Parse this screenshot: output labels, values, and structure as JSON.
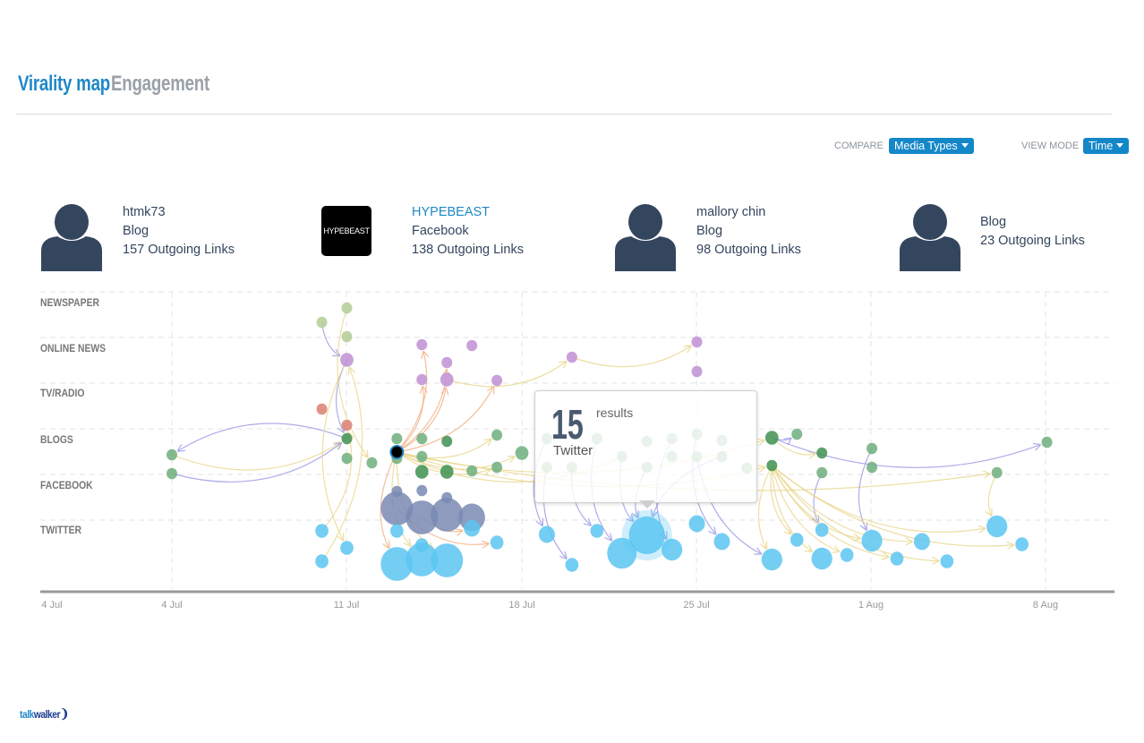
{
  "tabs": [
    {
      "label": "Virality map",
      "active": true
    },
    {
      "label": "Engagement",
      "active": false
    }
  ],
  "controls": {
    "compare_label": "COMPARE",
    "compare_value": "Media Types",
    "view_mode_label": "VIEW MODE",
    "view_mode_value": "Time"
  },
  "top_sources": [
    {
      "name": "htmk73",
      "type": "Blog",
      "links": "157 Outgoing Links",
      "avatar": "person-icon"
    },
    {
      "name": "HYPEBEAST",
      "type": "Facebook",
      "links": "138 Outgoing Links",
      "avatar": "hypebeast-logo",
      "logo_text": "HYPEBEAST"
    },
    {
      "name": "mallory chin",
      "type": "Blog",
      "links": "98 Outgoing Links",
      "avatar": "person-icon"
    },
    {
      "type": "Blog",
      "links": "23 Outgoing Links",
      "avatar": "person-icon"
    }
  ],
  "chart_data": {
    "type": "network-timeline",
    "lanes": [
      "NEWSPAPER",
      "ONLINE NEWS",
      "TV/RADIO",
      "BLOGS",
      "FACEBOOK",
      "TWITTER"
    ],
    "x_ticks": [
      "4 Jul",
      "4 Jul",
      "11 Jul",
      "18 Jul",
      "25 Jul",
      "1 Aug",
      "8 Aug"
    ],
    "grid": true,
    "colors": {
      "lightgreen": "#b3cc98",
      "purple": "#c08fd4",
      "red": "#dc7f72",
      "green": "#6fae7d",
      "darkgreen": "#3f9150",
      "slate": "#7a89b3",
      "cyan": "#5cc6f1",
      "black": "#000000",
      "edge_yellow": "#e9d68c",
      "edge_orange": "#f2b083",
      "edge_purple": "#9a98e6"
    },
    "nodes": [
      [
        "11 Jul",
        "NEWSPAPER",
        1,
        "lightgreen"
      ],
      [
        "10 Jul",
        "NEWSPAPER",
        1,
        "lightgreen"
      ],
      [
        "11 Jul",
        "NEWSPAPER",
        1,
        "lightgreen"
      ],
      [
        "11 Jul",
        "ONLINE NEWS",
        2,
        "purple"
      ],
      [
        "14 Jul",
        "ONLINE NEWS",
        1,
        "purple"
      ],
      [
        "16 Jul",
        "ONLINE NEWS",
        1,
        "purple"
      ],
      [
        "15 Jul",
        "ONLINE NEWS",
        1,
        "purple"
      ],
      [
        "14 Jul",
        "ONLINE NEWS",
        1,
        "purple"
      ],
      [
        "15 Jul",
        "ONLINE NEWS",
        2,
        "purple"
      ],
      [
        "17 Jul",
        "ONLINE NEWS",
        1,
        "purple"
      ],
      [
        "20 Jul",
        "ONLINE NEWS",
        1,
        "purple"
      ],
      [
        "25 Jul",
        "ONLINE NEWS",
        1,
        "purple"
      ],
      [
        "25 Jul",
        "ONLINE NEWS",
        1,
        "purple"
      ],
      [
        "10 Jul",
        "TV/RADIO",
        1,
        "red"
      ],
      [
        "11 Jul",
        "TV/RADIO",
        1,
        "red"
      ],
      [
        "4 Jul",
        "BLOGS",
        1,
        "green"
      ],
      [
        "4 Jul",
        "BLOGS",
        1,
        "green"
      ],
      [
        "11 Jul",
        "BLOGS",
        1,
        "darkgreen"
      ],
      [
        "11 Jul",
        "BLOGS",
        1,
        "green"
      ],
      [
        "12 Jul",
        "BLOGS",
        1,
        "green"
      ],
      [
        "13 Jul",
        "BLOGS",
        1,
        "green"
      ],
      [
        "13 Jul",
        "BLOGS",
        1,
        "green"
      ],
      [
        "14 Jul",
        "BLOGS",
        1,
        "green"
      ],
      [
        "14 Jul",
        "BLOGS",
        1,
        "green"
      ],
      [
        "14 Jul",
        "BLOGS",
        2,
        "darkgreen"
      ],
      [
        "15 Jul",
        "BLOGS",
        1,
        "darkgreen"
      ],
      [
        "15 Jul",
        "BLOGS",
        2,
        "darkgreen"
      ],
      [
        "16 Jul",
        "BLOGS",
        1,
        "green"
      ],
      [
        "17 Jul",
        "BLOGS",
        1,
        "green"
      ],
      [
        "18 Jul",
        "BLOGS",
        2,
        "green"
      ],
      [
        "17 Jul",
        "BLOGS",
        1,
        "green"
      ],
      [
        "19 Jul",
        "BLOGS",
        1,
        "green"
      ],
      [
        "19 Jul",
        "BLOGS",
        1,
        "green"
      ],
      [
        "20 Jul",
        "BLOGS",
        1,
        "green"
      ],
      [
        "21 Jul",
        "BLOGS",
        1,
        "green"
      ],
      [
        "22 Jul",
        "BLOGS",
        1,
        "green"
      ],
      [
        "23 Jul",
        "BLOGS",
        1,
        "green"
      ],
      [
        "23 Jul",
        "BLOGS",
        1,
        "green"
      ],
      [
        "24 Jul",
        "BLOGS",
        1,
        "green"
      ],
      [
        "24 Jul",
        "BLOGS",
        1,
        "green"
      ],
      [
        "25 Jul",
        "BLOGS",
        1,
        "green"
      ],
      [
        "25 Jul",
        "BLOGS",
        1,
        "green"
      ],
      [
        "26 Jul",
        "BLOGS",
        1,
        "green"
      ],
      [
        "26 Jul",
        "BLOGS",
        1,
        "green"
      ],
      [
        "27 Jul",
        "BLOGS",
        1,
        "green"
      ],
      [
        "28 Jul",
        "BLOGS",
        2,
        "darkgreen"
      ],
      [
        "29 Jul",
        "BLOGS",
        1,
        "green"
      ],
      [
        "30 Jul",
        "BLOGS",
        1,
        "darkgreen"
      ],
      [
        "28 Jul",
        "BLOGS",
        1,
        "darkgreen"
      ],
      [
        "30 Jul",
        "BLOGS",
        1,
        "green"
      ],
      [
        "1 Aug",
        "BLOGS",
        1,
        "green"
      ],
      [
        "1 Aug",
        "BLOGS",
        1,
        "green"
      ],
      [
        "6 Aug",
        "BLOGS",
        1,
        "green"
      ],
      [
        "8 Aug",
        "BLOGS",
        1,
        "green"
      ],
      [
        "13 Jul",
        "BLOGS",
        1,
        "black"
      ],
      [
        "13 Jul",
        "FACEBOOK",
        1,
        "slate"
      ],
      [
        "14 Jul",
        "FACEBOOK",
        1,
        "slate"
      ],
      [
        "15 Jul",
        "FACEBOOK",
        1,
        "slate"
      ],
      [
        "13 Jul",
        "FACEBOOK",
        12,
        "slate"
      ],
      [
        "14 Jul",
        "FACEBOOK",
        12,
        "slate"
      ],
      [
        "15 Jul",
        "FACEBOOK",
        12,
        "slate"
      ],
      [
        "16 Jul",
        "FACEBOOK",
        8,
        "slate"
      ],
      [
        "10 Jul",
        "TWITTER",
        2,
        "cyan"
      ],
      [
        "11 Jul",
        "TWITTER",
        2,
        "cyan"
      ],
      [
        "10 Jul",
        "TWITTER",
        2,
        "cyan"
      ],
      [
        "13 Jul",
        "TWITTER",
        2,
        "cyan"
      ],
      [
        "14 Jul",
        "TWITTER",
        2,
        "cyan"
      ],
      [
        "16 Jul",
        "TWITTER",
        3,
        "cyan"
      ],
      [
        "13 Jul",
        "TWITTER",
        12,
        "cyan"
      ],
      [
        "14 Jul",
        "TWITTER",
        12,
        "cyan"
      ],
      [
        "15 Jul",
        "TWITTER",
        12,
        "cyan"
      ],
      [
        "17 Jul",
        "TWITTER",
        2,
        "cyan"
      ],
      [
        "19 Jul",
        "TWITTER",
        3,
        "cyan"
      ],
      [
        "20 Jul",
        "TWITTER",
        2,
        "cyan"
      ],
      [
        "21 Jul",
        "TWITTER",
        2,
        "cyan"
      ],
      [
        "22 Jul",
        "TWITTER",
        10,
        "cyan"
      ],
      [
        "23 Jul",
        "TWITTER",
        15,
        "cyan"
      ],
      [
        "24 Jul",
        "TWITTER",
        5,
        "cyan"
      ],
      [
        "25 Jul",
        "TWITTER",
        3,
        "cyan"
      ],
      [
        "26 Jul",
        "TWITTER",
        3,
        "cyan"
      ],
      [
        "28 Jul",
        "TWITTER",
        5,
        "cyan"
      ],
      [
        "29 Jul",
        "TWITTER",
        2,
        "cyan"
      ],
      [
        "30 Jul",
        "TWITTER",
        5,
        "cyan"
      ],
      [
        "30 Jul",
        "TWITTER",
        2,
        "cyan"
      ],
      [
        "31 Jul",
        "TWITTER",
        2,
        "cyan"
      ],
      [
        "1 Aug",
        "TWITTER",
        5,
        "cyan"
      ],
      [
        "2 Aug",
        "TWITTER",
        2,
        "cyan"
      ],
      [
        "3 Aug",
        "TWITTER",
        3,
        "cyan"
      ],
      [
        "4 Aug",
        "TWITTER",
        2,
        "cyan"
      ],
      [
        "6 Aug",
        "TWITTER",
        5,
        "cyan"
      ],
      [
        "7 Aug",
        "TWITTER",
        2,
        "cyan"
      ]
    ],
    "edges": [
      [
        15,
        17,
        "edge_yellow"
      ],
      [
        16,
        17,
        "edge_purple"
      ],
      [
        17,
        15,
        "edge_purple"
      ],
      [
        1,
        3,
        "edge_purple"
      ],
      [
        3,
        17,
        "edge_purple"
      ],
      [
        0,
        19,
        "edge_yellow"
      ],
      [
        64,
        3,
        "edge_yellow"
      ],
      [
        62,
        14,
        "edge_yellow"
      ],
      [
        3,
        63,
        "edge_yellow"
      ],
      [
        54,
        4,
        "edge_orange"
      ],
      [
        54,
        7,
        "edge_orange"
      ],
      [
        54,
        8,
        "edge_orange"
      ],
      [
        54,
        9,
        "edge_orange"
      ],
      [
        54,
        6,
        "edge_orange"
      ],
      [
        54,
        68,
        "edge_orange"
      ],
      [
        54,
        69,
        "edge_yellow"
      ],
      [
        54,
        70,
        "edge_yellow"
      ],
      [
        54,
        28,
        "edge_yellow"
      ],
      [
        54,
        29,
        "edge_yellow"
      ],
      [
        54,
        30,
        "edge_yellow"
      ],
      [
        54,
        35,
        "edge_yellow"
      ],
      [
        54,
        45,
        "edge_yellow"
      ],
      [
        54,
        48,
        "edge_yellow"
      ],
      [
        54,
        52,
        "edge_yellow"
      ],
      [
        58,
        71,
        "edge_orange"
      ],
      [
        59,
        67,
        "edge_orange"
      ],
      [
        8,
        10,
        "edge_yellow"
      ],
      [
        10,
        11,
        "edge_yellow"
      ],
      [
        31,
        72,
        "edge_purple"
      ],
      [
        32,
        73,
        "edge_purple"
      ],
      [
        34,
        75,
        "edge_purple"
      ],
      [
        35,
        76,
        "edge_purple"
      ],
      [
        37,
        76,
        "edge_purple"
      ],
      [
        43,
        76,
        "edge_purple"
      ],
      [
        38,
        77,
        "edge_purple"
      ],
      [
        40,
        79,
        "edge_purple"
      ],
      [
        41,
        80,
        "edge_purple"
      ],
      [
        33,
        74,
        "edge_purple"
      ],
      [
        45,
        53,
        "edge_purple"
      ],
      [
        45,
        46,
        "edge_purple"
      ],
      [
        45,
        47,
        "edge_yellow"
      ],
      [
        49,
        83,
        "edge_purple"
      ],
      [
        50,
        85,
        "edge_purple"
      ],
      [
        48,
        80,
        "edge_yellow"
      ],
      [
        48,
        82,
        "edge_yellow"
      ],
      [
        48,
        84,
        "edge_yellow"
      ],
      [
        48,
        85,
        "edge_yellow"
      ],
      [
        48,
        86,
        "edge_yellow"
      ],
      [
        48,
        87,
        "edge_yellow"
      ],
      [
        48,
        88,
        "edge_yellow"
      ],
      [
        48,
        89,
        "edge_yellow"
      ],
      [
        48,
        90,
        "edge_yellow"
      ],
      [
        48,
        81,
        "edge_yellow"
      ],
      [
        52,
        89,
        "edge_yellow"
      ]
    ],
    "selected": {
      "count": "15",
      "count_label": "results",
      "media": "Twitter"
    }
  },
  "footer": {
    "logo_part1": "talk",
    "logo_part2": "walker"
  }
}
